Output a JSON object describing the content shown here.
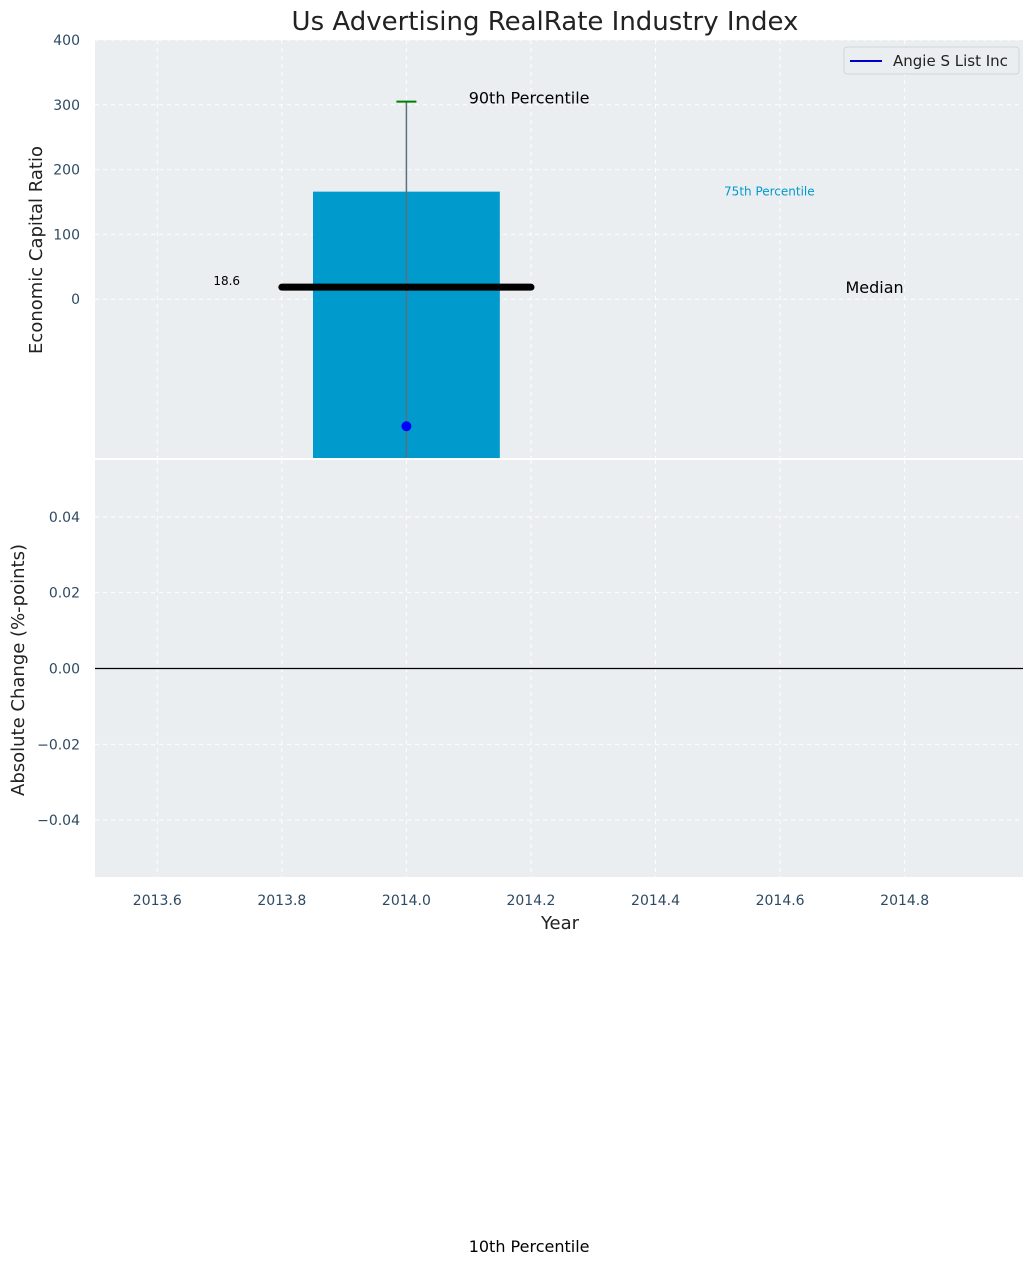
{
  "chart_data": [
    {
      "type": "bar",
      "title": "Us Advertising RealRate Industry Index",
      "ylabel": "Economic Capital Ratio",
      "xlim": [
        2013.5,
        2014.99
      ],
      "ylim": [
        -245,
        400
      ],
      "yticks": [
        0,
        100,
        200,
        300,
        400
      ],
      "bar": {
        "x": 2014.0,
        "width": 0.3,
        "bottom": -245,
        "top": 166,
        "color": "#009ACD"
      },
      "percentile_90": {
        "x": 2014.0,
        "value": 305,
        "color": "#008000"
      },
      "median": {
        "x_start": 2013.8,
        "x_end": 2014.2,
        "value": 18.6,
        "label": "18.6"
      },
      "company_point": {
        "x": 2014.0,
        "value": -196,
        "color": "#0000FF"
      },
      "annotations": {
        "p90": "90th Percentile",
        "p75": "75th Percentile",
        "median": "Median",
        "p10": "10th Percentile"
      },
      "legend": {
        "position": "top-right",
        "entries": [
          {
            "label": "Angie S List Inc",
            "color": "#0000CC"
          }
        ]
      },
      "grid": true,
      "background": "#EAEEF0"
    },
    {
      "type": "line",
      "ylabel": "Absolute Change (%-points)",
      "xlabel": "Year",
      "xlim": [
        2013.5,
        2014.99
      ],
      "ylim": [
        -0.055,
        0.055
      ],
      "yticks": [
        0.04,
        0.02,
        0.0,
        -0.02,
        -0.04
      ],
      "ytick_labels": [
        "0.04",
        "0.02",
        "0.00",
        "−0.02",
        "−0.04"
      ],
      "xticks": [
        2013.6,
        2013.8,
        2014.0,
        2014.2,
        2014.4,
        2014.6,
        2014.8
      ],
      "xtick_labels": [
        "2013.6",
        "2013.8",
        "2014.0",
        "2014.2",
        "2014.4",
        "2014.6",
        "2014.8"
      ],
      "zero_line": 0.0,
      "grid": true,
      "background": "#EAEEF0"
    }
  ]
}
